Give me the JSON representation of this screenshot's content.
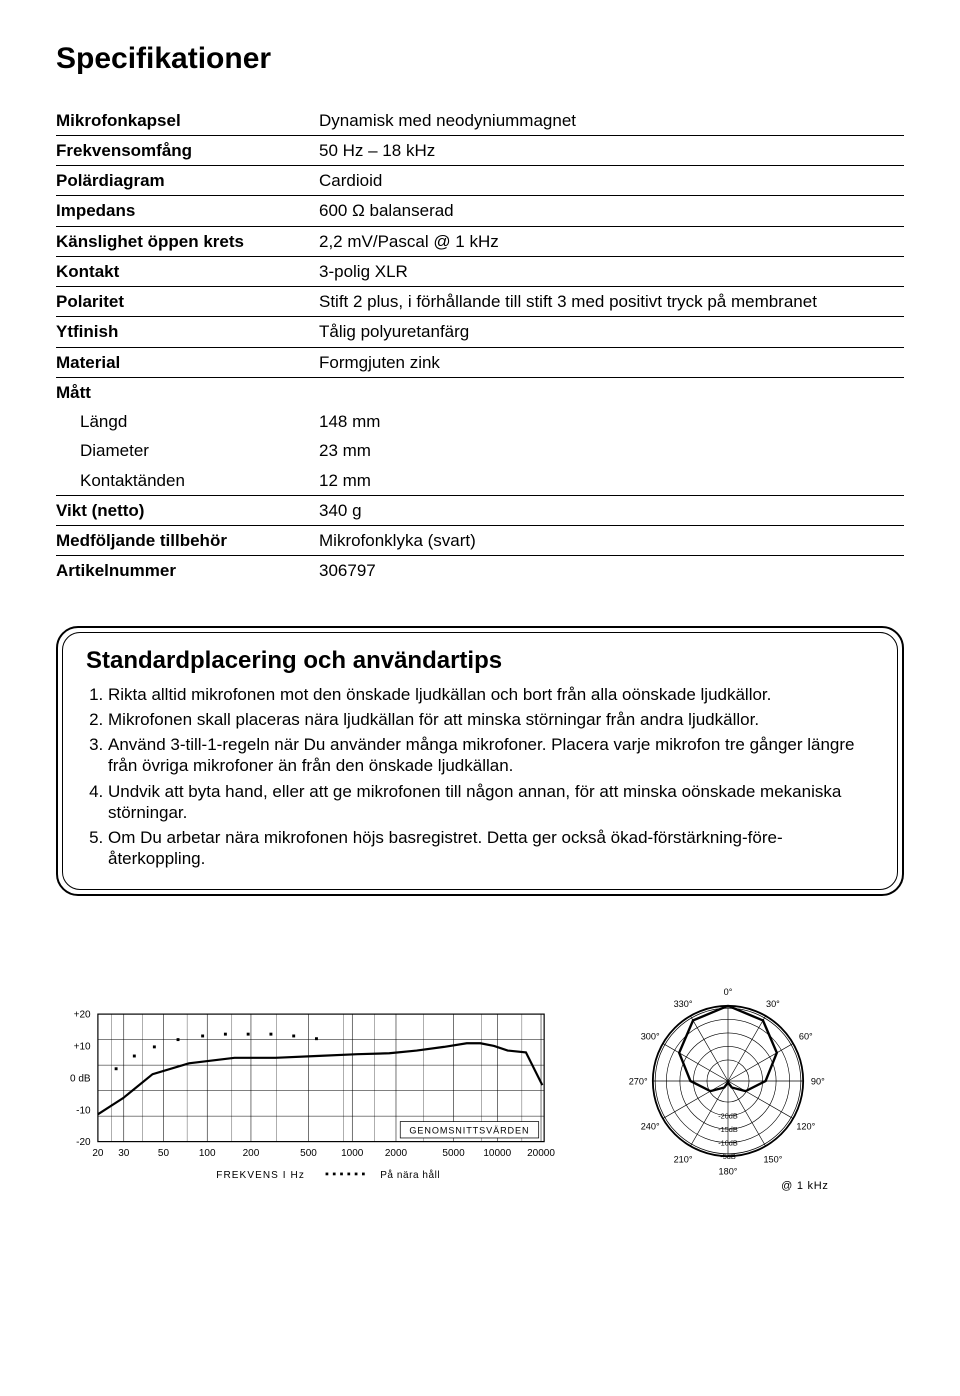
{
  "title": "Specifikationer",
  "specs": [
    {
      "k": "Mikrofonkapsel",
      "v": "Dynamisk med neodyniummagnet"
    },
    {
      "k": "Frekvensomfång",
      "v": "50 Hz – 18 kHz"
    },
    {
      "k": "Polärdiagram",
      "v": "Cardioid"
    },
    {
      "k": "Impedans",
      "v": "600 Ω balanserad"
    },
    {
      "k": "Känslighet öppen krets",
      "v": "2,2 mV/Pascal @ 1 kHz"
    },
    {
      "k": "Kontakt",
      "v": "3-polig XLR"
    },
    {
      "k": "Polaritet",
      "v": "Stift 2 plus,  i förhållande till stift 3 med positivt tryck på membranet"
    },
    {
      "k": "Ytfinish",
      "v": "Tålig polyuretanfärg"
    },
    {
      "k": "Material",
      "v": "Formgjuten zink"
    }
  ],
  "dim_header": "Mått",
  "dims": [
    {
      "k": "Längd",
      "v": "148 mm"
    },
    {
      "k": "Diameter",
      "v": "23 mm"
    },
    {
      "k": "Kontaktänden",
      "v": "12 mm"
    }
  ],
  "specs2": [
    {
      "k": "Vikt (netto)",
      "v": "340 g"
    },
    {
      "k": "Medföljande tillbehör",
      "v": "Mikrofonklyka (svart)"
    },
    {
      "k": "Artikelnummer",
      "v": "306797"
    }
  ],
  "tips_title": "Standardplacering och användartips",
  "tips": [
    "Rikta alltid mikrofonen mot den önskade ljudkällan och bort från alla oönskade ljudkällor.",
    "Mikrofonen skall placeras nära ljudkällan för att minska störningar från andra ljudkällor.",
    "Använd 3-till-1-regeln när Du använder många mikrofoner. Placera varje mikrofon tre gånger längre från övriga mikrofoner än från den önskade ljudkällan.",
    "Undvik att byta hand, eller att ge mikrofonen till någon annan, för att minska oönskade mekaniska störningar.",
    "Om Du arbetar nära mikrofonen höjs basregistret. Detta ger också ökad-förstärkning-före-återkoppling."
  ],
  "freq_chart": {
    "label_box": "GENOMSNITTSVÄRDEN",
    "x_caption": "FREKVENS I Hz",
    "legend_dotted": "På nära håll",
    "y_ticks": [
      "+20",
      "+10",
      "0 dB",
      "-10",
      "-20"
    ],
    "x_ticks": [
      "20",
      "30",
      "50",
      "100",
      "200",
      "500",
      "1000",
      "2000",
      "5000",
      "10000",
      "20000"
    ],
    "grid_color": "#000",
    "bg": "#fff",
    "line_color": "#000",
    "curve_solid": [
      [
        0,
        110
      ],
      [
        28,
        92
      ],
      [
        60,
        66
      ],
      [
        100,
        54
      ],
      [
        150,
        48
      ],
      [
        195,
        48
      ],
      [
        240,
        46
      ],
      [
        285,
        44
      ],
      [
        320,
        43
      ],
      [
        350,
        40
      ],
      [
        380,
        36
      ],
      [
        405,
        32
      ],
      [
        420,
        32
      ],
      [
        435,
        35
      ],
      [
        450,
        40
      ],
      [
        470,
        42
      ],
      [
        488,
        78
      ]
    ],
    "curve_dotted": [
      [
        20,
        60
      ],
      [
        40,
        46
      ],
      [
        62,
        36
      ],
      [
        88,
        28
      ],
      [
        115,
        24
      ],
      [
        140,
        22
      ],
      [
        165,
        22
      ],
      [
        190,
        22
      ],
      [
        215,
        24
      ],
      [
        240,
        27
      ]
    ]
  },
  "polar_chart": {
    "caption": "@ 1 kHz",
    "angles": [
      "0°",
      "30°",
      "60°",
      "90°",
      "120°",
      "150°",
      "180°",
      "210°",
      "240°",
      "270°",
      "300°",
      "330°"
    ],
    "db_rings": [
      "-20dB",
      "-15dB",
      "-10dB",
      "-5dB"
    ],
    "line_color": "#000",
    "cardioid": [
      [
        0,
        1.0
      ],
      [
        30,
        0.93
      ],
      [
        60,
        0.75
      ],
      [
        90,
        0.5
      ],
      [
        120,
        0.27
      ],
      [
        150,
        0.1
      ],
      [
        180,
        0.02
      ],
      [
        210,
        0.1
      ],
      [
        240,
        0.27
      ],
      [
        270,
        0.5
      ],
      [
        300,
        0.75
      ],
      [
        330,
        0.93
      ]
    ]
  }
}
